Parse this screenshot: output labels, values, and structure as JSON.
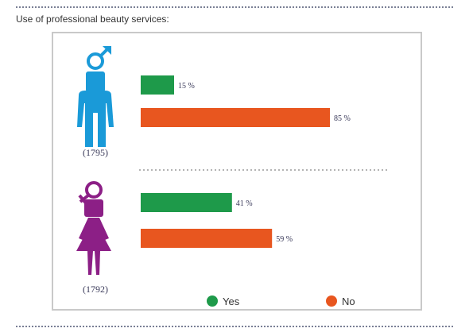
{
  "title": "Use of professional beauty services:",
  "colors": {
    "yes": "#1e9a4a",
    "no": "#e8561f",
    "male": "#1a9ad8",
    "female": "#8c1f86",
    "divider": "#9a9a9a"
  },
  "chart_data": {
    "type": "bar",
    "orientation": "horizontal",
    "title": "Use of professional beauty services:",
    "xlim": [
      0,
      100
    ],
    "grid": false,
    "legend_position": "bottom",
    "value_suffix": " %",
    "groups": [
      {
        "gender": "male",
        "icon": "male-figure-icon",
        "count": "(1795)"
      },
      {
        "gender": "female",
        "icon": "female-figure-icon",
        "count": "(1792)"
      }
    ],
    "series": [
      {
        "name": "Yes",
        "values": [
          15,
          41
        ]
      },
      {
        "name": "No",
        "values": [
          85,
          59
        ]
      }
    ]
  }
}
